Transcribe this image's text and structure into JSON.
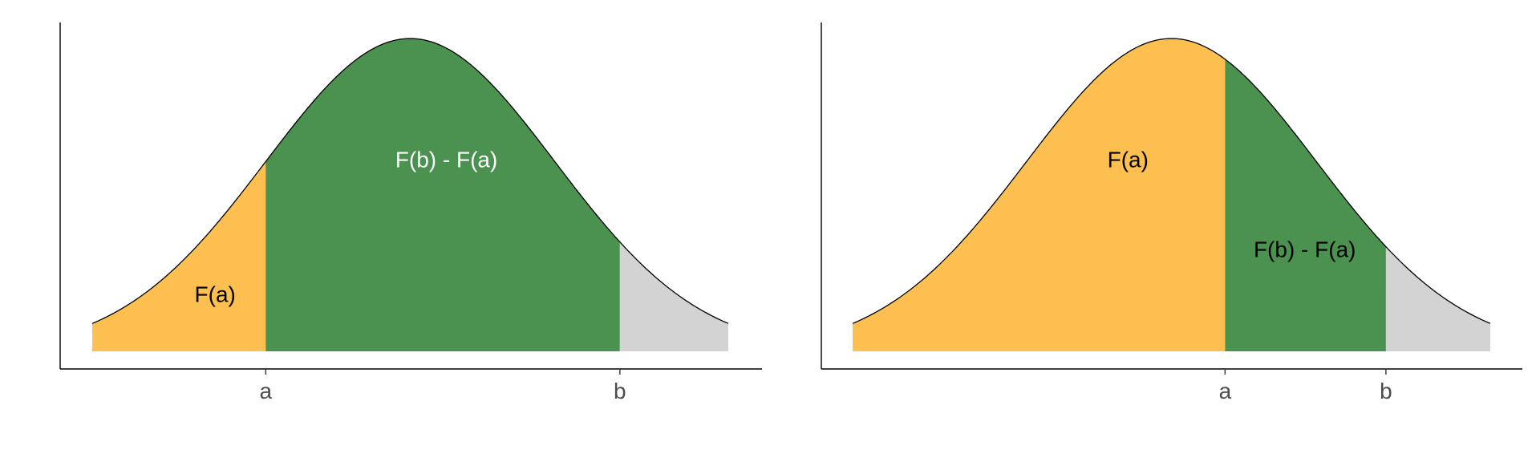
{
  "chart_data": [
    {
      "type": "area",
      "title": "",
      "xlabel": "",
      "ylabel": "",
      "curve": "normal density",
      "grid": false,
      "legend": "none",
      "x_ticks": [
        {
          "label": "a",
          "value": -1.0
        },
        {
          "label": "b",
          "value": 1.45
        }
      ],
      "xlim": [
        -2.2,
        2.2
      ],
      "regions": [
        {
          "name": "below-a",
          "from": -2.2,
          "to": -1.0,
          "color": "#FDBF4F",
          "label": "F(a)",
          "label_color": "#000000",
          "label_x": -1.35,
          "label_y": 0.063
        },
        {
          "name": "between-a-b",
          "from": -1.0,
          "to": 1.45,
          "color": "#4B914F",
          "label": "F(b) - F(a)",
          "label_color": "#ffffff",
          "label_x": 0.25,
          "label_y": 0.235
        },
        {
          "name": "above-b",
          "from": 1.45,
          "to": 2.2,
          "color": "#D3D3D3",
          "label": "",
          "label_color": "#000000"
        }
      ]
    },
    {
      "type": "area",
      "title": "",
      "xlabel": "",
      "ylabel": "",
      "curve": "normal density",
      "grid": false,
      "legend": "none",
      "x_ticks": [
        {
          "label": "a",
          "value": 0.37
        },
        {
          "label": "b",
          "value": 1.48
        }
      ],
      "xlim": [
        -2.2,
        2.2
      ],
      "regions": [
        {
          "name": "below-a",
          "from": -2.2,
          "to": 0.37,
          "color": "#FDBF4F",
          "label": "F(a)",
          "label_color": "#000000",
          "label_x": -0.3,
          "label_y": 0.235
        },
        {
          "name": "between-a-b",
          "from": 0.37,
          "to": 1.48,
          "color": "#4B914F",
          "label": "F(b) - F(a)",
          "label_color": "#000000",
          "label_x": 0.92,
          "label_y": 0.12
        },
        {
          "name": "above-b",
          "from": 1.48,
          "to": 2.2,
          "color": "#D3D3D3",
          "label": "",
          "label_color": "#000000"
        }
      ]
    }
  ]
}
